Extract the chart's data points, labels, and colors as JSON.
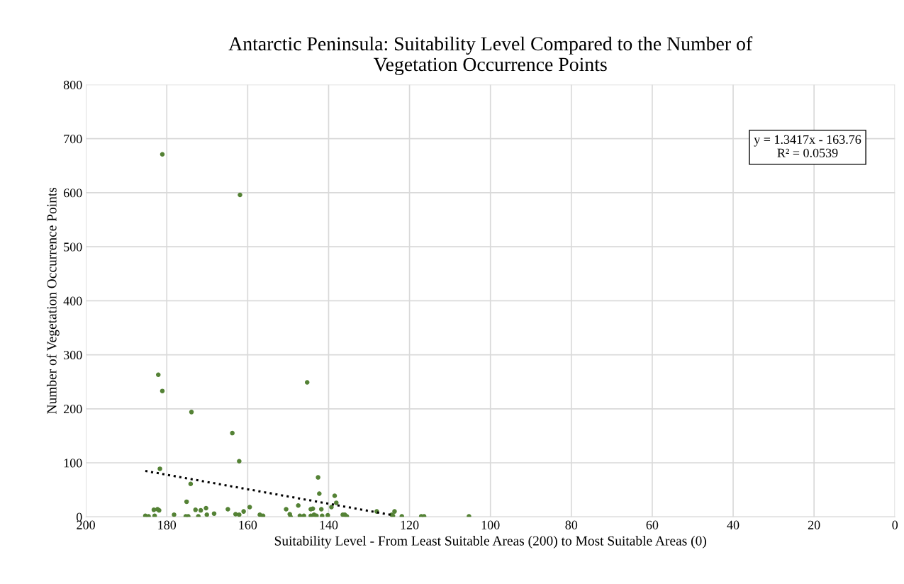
{
  "chart_data": {
    "type": "scatter",
    "title": "Antarctic Peninsula: Suitability Level Compared to the Number of\nVegetation Occurrence Points",
    "xlabel": "Suitability Level - From Least Suitable Areas (200) to Most Suitable Areas (0)",
    "ylabel": "Number of Vegetation Occurrence Points",
    "xlim": [
      200,
      0
    ],
    "xticks": [
      200,
      180,
      160,
      140,
      120,
      100,
      80,
      60,
      40,
      20,
      0
    ],
    "ylim": [
      0,
      800
    ],
    "yticks": [
      0,
      100,
      200,
      300,
      400,
      500,
      600,
      700,
      800
    ],
    "grid": true,
    "marker": "circle",
    "series": [
      {
        "color": "#548235",
        "x": [
          181.1,
          161.9,
          182.1,
          181.1,
          173.9,
          163.8,
          145.3,
          162.1,
          181.7,
          174.1,
          175.1,
          185.3,
          184.5,
          183.2,
          182.3,
          183.0,
          181.9,
          178.2,
          175.3,
          174.7,
          172.9,
          171.6,
          172.2,
          170.3,
          170.1,
          168.3,
          164.9,
          163.0,
          162.1,
          161.0,
          159.5,
          157.0,
          156.2,
          150.5,
          149.6,
          149.4,
          147.5,
          147.1,
          146.1,
          144.4,
          143.9,
          144.4,
          143.6,
          142.6,
          142.3,
          143.0,
          141.8,
          141.6,
          140.2,
          139.3,
          138.5,
          138.1,
          136.5,
          136.0,
          135.5,
          128.1,
          124.4,
          123.7,
          124.1,
          121.9,
          117.1,
          116.4,
          105.3
        ],
        "values": [
          671,
          596,
          263,
          233,
          194,
          155,
          249,
          103,
          89,
          61,
          28,
          2,
          1,
          13,
          14,
          2,
          12,
          4,
          1,
          1,
          13,
          12,
          1,
          16,
          4,
          6,
          14,
          5,
          4,
          10,
          18,
          4,
          2,
          14,
          5,
          0,
          21,
          2,
          2,
          14,
          15,
          2,
          4,
          73,
          43,
          2,
          14,
          2,
          3,
          18,
          39,
          26,
          4,
          4,
          1,
          10,
          4,
          10,
          2,
          1,
          1,
          1,
          1
        ]
      },
      {
        "type": "line",
        "color": "#000000",
        "line_style": "dotted",
        "marker": "none",
        "x": [
          185.3,
          124.1
        ],
        "values": [
          85,
          3
        ]
      }
    ],
    "annotations": [
      "y = 1.3417x - 163.76\nR² = 0.0539"
    ]
  }
}
